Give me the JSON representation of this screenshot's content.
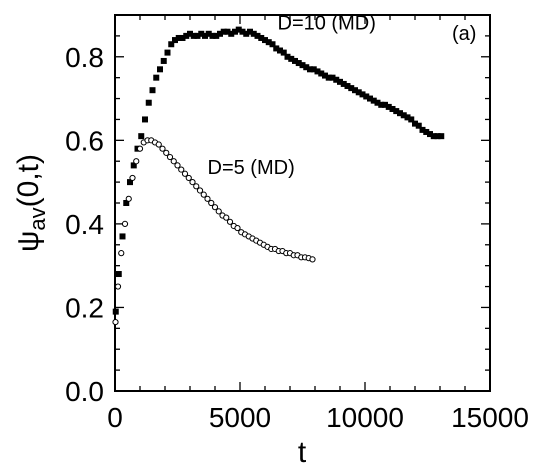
{
  "chart_data": {
    "type": "scatter",
    "panel_label": "(a)",
    "xlabel": "t",
    "ylabel": {
      "base": "ψ",
      "sub": "av",
      "rest": "(0,t)"
    },
    "xlim": [
      0,
      15000
    ],
    "ylim": [
      0.0,
      0.9
    ],
    "xticks": [
      0,
      5000,
      10000,
      15000
    ],
    "xtick_labels": [
      "0",
      "5000",
      "10000",
      "15000"
    ],
    "yticks": [
      0.0,
      0.2,
      0.4,
      0.6,
      0.8
    ],
    "ytick_labels": [
      "0.0",
      "0.2",
      "0.4",
      "0.6",
      "0.8"
    ],
    "grid": false,
    "series": [
      {
        "name": "D=10 (MD)",
        "marker": "filled-square",
        "label": {
          "text": "D=10 (MD)",
          "x": 6500,
          "y": 0.865
        },
        "points": [
          [
            30,
            0.19
          ],
          [
            150,
            0.28
          ],
          [
            300,
            0.37
          ],
          [
            450,
            0.45
          ],
          [
            600,
            0.5
          ],
          [
            750,
            0.54
          ],
          [
            900,
            0.58
          ],
          [
            1050,
            0.61
          ],
          [
            1200,
            0.65
          ],
          [
            1350,
            0.69
          ],
          [
            1500,
            0.72
          ],
          [
            1650,
            0.75
          ],
          [
            1800,
            0.77
          ],
          [
            1950,
            0.79
          ],
          [
            2100,
            0.81
          ],
          [
            2250,
            0.83
          ],
          [
            2400,
            0.84
          ],
          [
            2550,
            0.845
          ],
          [
            2700,
            0.845
          ],
          [
            2850,
            0.85
          ],
          [
            3000,
            0.855
          ],
          [
            3150,
            0.85
          ],
          [
            3300,
            0.85
          ],
          [
            3450,
            0.855
          ],
          [
            3600,
            0.85
          ],
          [
            3750,
            0.855
          ],
          [
            3900,
            0.85
          ],
          [
            4050,
            0.85
          ],
          [
            4200,
            0.855
          ],
          [
            4350,
            0.86
          ],
          [
            4500,
            0.86
          ],
          [
            4650,
            0.855
          ],
          [
            4800,
            0.86
          ],
          [
            4950,
            0.865
          ],
          [
            5100,
            0.86
          ],
          [
            5250,
            0.855
          ],
          [
            5400,
            0.86
          ],
          [
            5550,
            0.855
          ],
          [
            5700,
            0.85
          ],
          [
            5850,
            0.845
          ],
          [
            6000,
            0.84
          ],
          [
            6150,
            0.835
          ],
          [
            6300,
            0.83
          ],
          [
            6450,
            0.82
          ],
          [
            6600,
            0.815
          ],
          [
            6750,
            0.81
          ],
          [
            6900,
            0.8
          ],
          [
            7050,
            0.795
          ],
          [
            7200,
            0.79
          ],
          [
            7350,
            0.785
          ],
          [
            7500,
            0.78
          ],
          [
            7650,
            0.775
          ],
          [
            7800,
            0.77
          ],
          [
            7950,
            0.77
          ],
          [
            8100,
            0.765
          ],
          [
            8250,
            0.76
          ],
          [
            8400,
            0.755
          ],
          [
            8550,
            0.75
          ],
          [
            8700,
            0.75
          ],
          [
            8850,
            0.745
          ],
          [
            9000,
            0.74
          ],
          [
            9150,
            0.735
          ],
          [
            9300,
            0.73
          ],
          [
            9450,
            0.725
          ],
          [
            9600,
            0.72
          ],
          [
            9750,
            0.715
          ],
          [
            9900,
            0.71
          ],
          [
            10050,
            0.705
          ],
          [
            10200,
            0.7
          ],
          [
            10350,
            0.695
          ],
          [
            10500,
            0.69
          ],
          [
            10650,
            0.685
          ],
          [
            10800,
            0.685
          ],
          [
            10950,
            0.68
          ],
          [
            11100,
            0.675
          ],
          [
            11250,
            0.67
          ],
          [
            11400,
            0.665
          ],
          [
            11550,
            0.66
          ],
          [
            11700,
            0.655
          ],
          [
            11850,
            0.65
          ],
          [
            12000,
            0.64
          ],
          [
            12150,
            0.635
          ],
          [
            12300,
            0.625
          ],
          [
            12450,
            0.62
          ],
          [
            12600,
            0.615
          ],
          [
            12750,
            0.61
          ],
          [
            12900,
            0.61
          ],
          [
            13050,
            0.61
          ]
        ]
      },
      {
        "name": "D=5 (MD)",
        "marker": "open-circle",
        "label": {
          "text": "D=5 (MD)",
          "x": 3700,
          "y": 0.52
        },
        "points": [
          [
            20,
            0.165
          ],
          [
            120,
            0.25
          ],
          [
            250,
            0.33
          ],
          [
            400,
            0.4
          ],
          [
            550,
            0.46
          ],
          [
            700,
            0.51
          ],
          [
            850,
            0.55
          ],
          [
            1000,
            0.58
          ],
          [
            1150,
            0.595
          ],
          [
            1300,
            0.6
          ],
          [
            1450,
            0.6
          ],
          [
            1600,
            0.595
          ],
          [
            1750,
            0.59
          ],
          [
            1900,
            0.58
          ],
          [
            2050,
            0.57
          ],
          [
            2200,
            0.56
          ],
          [
            2350,
            0.55
          ],
          [
            2500,
            0.54
          ],
          [
            2650,
            0.53
          ],
          [
            2800,
            0.52
          ],
          [
            2950,
            0.51
          ],
          [
            3100,
            0.5
          ],
          [
            3250,
            0.49
          ],
          [
            3400,
            0.48
          ],
          [
            3550,
            0.47
          ],
          [
            3700,
            0.46
          ],
          [
            3850,
            0.45
          ],
          [
            4000,
            0.44
          ],
          [
            4150,
            0.43
          ],
          [
            4300,
            0.42
          ],
          [
            4450,
            0.415
          ],
          [
            4600,
            0.405
          ],
          [
            4750,
            0.395
          ],
          [
            4900,
            0.39
          ],
          [
            5050,
            0.38
          ],
          [
            5200,
            0.375
          ],
          [
            5350,
            0.37
          ],
          [
            5500,
            0.365
          ],
          [
            5650,
            0.36
          ],
          [
            5800,
            0.355
          ],
          [
            5950,
            0.35
          ],
          [
            6100,
            0.345
          ],
          [
            6250,
            0.34
          ],
          [
            6400,
            0.34
          ],
          [
            6550,
            0.335
          ],
          [
            6700,
            0.335
          ],
          [
            6850,
            0.33
          ],
          [
            7000,
            0.33
          ],
          [
            7150,
            0.325
          ],
          [
            7300,
            0.325
          ],
          [
            7450,
            0.32
          ],
          [
            7600,
            0.32
          ],
          [
            7750,
            0.318
          ],
          [
            7900,
            0.315
          ]
        ]
      }
    ]
  }
}
